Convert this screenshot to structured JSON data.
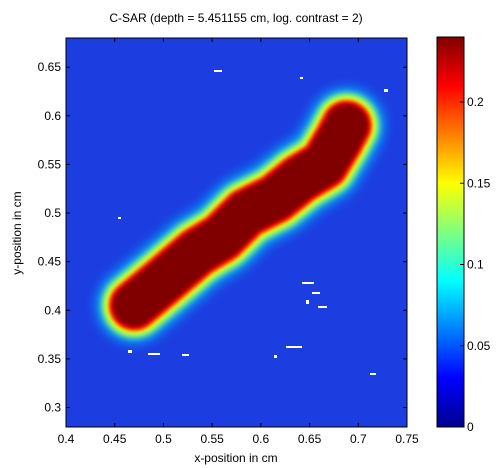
{
  "chart_data": {
    "type": "heatmap",
    "title": "C-SAR (depth = 5.451155 cm, log. contrast = 2)",
    "xlabel": "x-position in cm",
    "ylabel": "y-position in cm",
    "xlim": [
      0.4,
      0.75
    ],
    "ylim": [
      0.28,
      0.68
    ],
    "x_ticks": [
      0.4,
      0.45,
      0.5,
      0.55,
      0.6,
      0.65,
      0.7,
      0.75
    ],
    "x_tick_labels": [
      "0.4",
      "0.45",
      "0.5",
      "0.55",
      "0.6",
      "0.65",
      "0.7",
      "0.75"
    ],
    "y_ticks": [
      0.3,
      0.35,
      0.4,
      0.45,
      0.5,
      0.55,
      0.6,
      0.65
    ],
    "y_tick_labels": [
      "0.3",
      "0.35",
      "0.4",
      "0.45",
      "0.5",
      "0.55",
      "0.6",
      "0.65"
    ],
    "colormap": "jet",
    "colorbar": {
      "range": [
        0,
        0.24
      ],
      "ticks": [
        0,
        0.05,
        0.1,
        0.15,
        0.2
      ],
      "tick_labels": [
        "0",
        "0.05",
        "0.1",
        "0.15",
        "0.2"
      ]
    },
    "hotspot_path": [
      {
        "x": 0.47,
        "y": 0.405
      },
      {
        "x": 0.5,
        "y": 0.43
      },
      {
        "x": 0.535,
        "y": 0.46
      },
      {
        "x": 0.56,
        "y": 0.475
      },
      {
        "x": 0.585,
        "y": 0.5
      },
      {
        "x": 0.615,
        "y": 0.515
      },
      {
        "x": 0.64,
        "y": 0.535
      },
      {
        "x": 0.665,
        "y": 0.55
      },
      {
        "x": 0.68,
        "y": 0.575
      },
      {
        "x": 0.688,
        "y": 0.59
      }
    ],
    "hotspot_value": 0.24,
    "background_value": 0.03,
    "colors": {
      "background": "#1c3de0",
      "hot": "#800000"
    }
  }
}
